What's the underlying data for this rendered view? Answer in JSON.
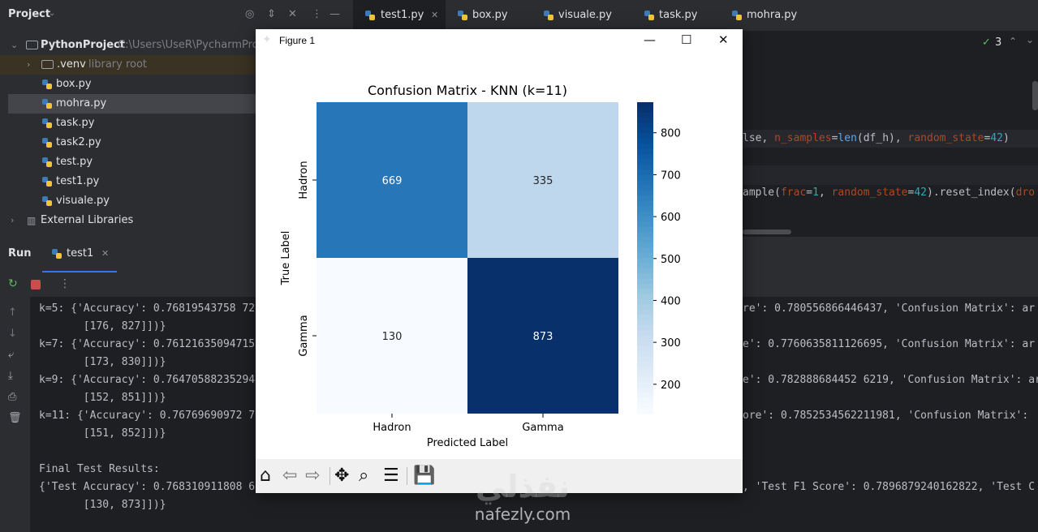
{
  "project": {
    "title": "Project",
    "root": {
      "name": "PythonProject",
      "path": "C:\\Users\\UseR\\PycharmPro"
    },
    "venv": {
      "name": ".venv",
      "note": "library root"
    },
    "files": [
      "box.py",
      "mohra.py",
      "task.py",
      "task2.py",
      "test.py",
      "test1.py",
      "visuale.py"
    ],
    "external": "External Libraries"
  },
  "editor": {
    "tabs": [
      "test1.py",
      "box.py",
      "visuale.py",
      "task.py",
      "mohra.py"
    ],
    "inspection_count": "3",
    "line1": {
      "a": "lse, ",
      "p1": "n_samples",
      "b": "=",
      "f1": "len",
      "c": "(df_h), ",
      "p2": "random_state",
      "d": "=",
      "n": "42",
      "e": ")"
    },
    "line2": {
      "a": "ample(",
      "p1": "frac",
      "b": "=",
      "n1": "1",
      "c": ", ",
      "p2": "random_state",
      "d": "=",
      "n2": "42",
      "e": ").reset_index(",
      "p3": "dro"
    }
  },
  "run": {
    "label": "Run",
    "tab": "test1",
    "lines": [
      {
        "left": "k=5: {'Accuracy': 0.76819543758 72",
        "right": "re': 0.780556866446437, 'Confusion Matrix': ar"
      },
      {
        "left": "       [176, 827]])}",
        "right": ""
      },
      {
        "left": "k=7: {'Accuracy': 0.76121635094715",
        "right": "e': 0.7760635811126695, 'Confusion Matrix': ar"
      },
      {
        "left": "       [173, 830]])}",
        "right": ""
      },
      {
        "left": "k=9: {'Accuracy': 0.76470588235294",
        "right": "e': 0.782888684452 6219, 'Confusion Matrix': ar"
      },
      {
        "left": "       [152, 851]])}",
        "right": ""
      },
      {
        "left": "k=11: {'Accuracy': 0.76769690972 7",
        "right": "ore': 0.7852534562211981, 'Confusion Matrix': "
      },
      {
        "left": "       [151, 852]])}",
        "right": ""
      },
      {
        "left": "",
        "right": ""
      },
      {
        "left": "Final Test Results:",
        "right": ""
      },
      {
        "left": "{'Test Accuracy': 0.768310911808 6",
        "right": ", 'Test F1 Score': 0.7896879240162822, 'Test C"
      },
      {
        "left": "       [130, 873]])}",
        "right": ""
      }
    ]
  },
  "figure": {
    "window_title": "Figure 1",
    "controls": {
      "minimize": "—",
      "maximize": "☐",
      "close": "✕"
    }
  },
  "chart_data": {
    "type": "heatmap",
    "title": "Confusion Matrix - KNN (k=11)",
    "xlabel": "Predicted Label",
    "ylabel": "True Label",
    "x_categories": [
      "Hadron",
      "Gamma"
    ],
    "y_categories": [
      "Hadron",
      "Gamma"
    ],
    "values": [
      [
        669,
        335
      ],
      [
        130,
        873
      ]
    ],
    "colormap": "Blues",
    "colorbar": {
      "min": 130,
      "max": 873,
      "ticks": [
        200,
        300,
        400,
        500,
        600,
        700,
        800
      ]
    }
  },
  "watermark": {
    "arabic": "نفذلي",
    "latin": "nafezly.com"
  }
}
